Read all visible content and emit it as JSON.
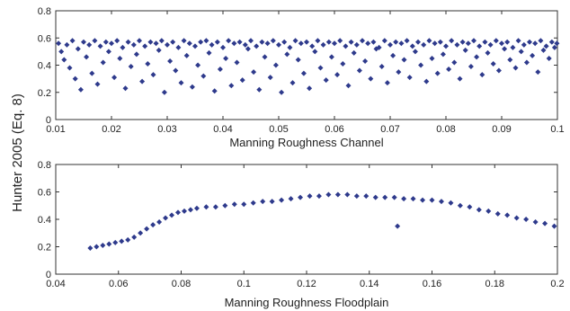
{
  "figure": {
    "shared_ylabel": "Hunter 2005 (Eq. 8)",
    "marker_color": "#2e3a8c"
  },
  "chart_data": [
    {
      "type": "scatter",
      "xlabel": "Manning Roughness Channel",
      "ylabel": "",
      "xlim": [
        0.01,
        0.1
      ],
      "ylim": [
        0,
        0.8
      ],
      "xticks": [
        "0.01",
        "0.02",
        "0.03",
        "0.04",
        "0.05",
        "0.06",
        "0.07",
        "0.08",
        "0.09",
        "0.1"
      ],
      "yticks": [
        "0",
        "0.2",
        "0.4",
        "0.6",
        "0.8"
      ],
      "grid": false,
      "points": [
        [
          0.0105,
          0.56
        ],
        [
          0.011,
          0.5
        ],
        [
          0.0115,
          0.44
        ],
        [
          0.012,
          0.55
        ],
        [
          0.0125,
          0.38
        ],
        [
          0.013,
          0.58
        ],
        [
          0.0135,
          0.3
        ],
        [
          0.014,
          0.52
        ],
        [
          0.0145,
          0.22
        ],
        [
          0.015,
          0.57
        ],
        [
          0.0155,
          0.46
        ],
        [
          0.016,
          0.55
        ],
        [
          0.0165,
          0.34
        ],
        [
          0.017,
          0.58
        ],
        [
          0.0175,
          0.26
        ],
        [
          0.018,
          0.54
        ],
        [
          0.0185,
          0.42
        ],
        [
          0.019,
          0.57
        ],
        [
          0.0195,
          0.5
        ],
        [
          0.02,
          0.56
        ],
        [
          0.0205,
          0.31
        ],
        [
          0.021,
          0.58
        ],
        [
          0.0215,
          0.45
        ],
        [
          0.022,
          0.53
        ],
        [
          0.0225,
          0.23
        ],
        [
          0.023,
          0.57
        ],
        [
          0.0235,
          0.39
        ],
        [
          0.024,
          0.55
        ],
        [
          0.0245,
          0.48
        ],
        [
          0.025,
          0.58
        ],
        [
          0.0255,
          0.28
        ],
        [
          0.026,
          0.54
        ],
        [
          0.0265,
          0.41
        ],
        [
          0.027,
          0.57
        ],
        [
          0.0275,
          0.33
        ],
        [
          0.028,
          0.56
        ],
        [
          0.0285,
          0.51
        ],
        [
          0.029,
          0.58
        ],
        [
          0.0295,
          0.2
        ],
        [
          0.03,
          0.55
        ],
        [
          0.0305,
          0.43
        ],
        [
          0.031,
          0.57
        ],
        [
          0.0315,
          0.36
        ],
        [
          0.032,
          0.53
        ],
        [
          0.0325,
          0.27
        ],
        [
          0.033,
          0.58
        ],
        [
          0.0335,
          0.47
        ],
        [
          0.034,
          0.56
        ],
        [
          0.0345,
          0.24
        ],
        [
          0.035,
          0.54
        ],
        [
          0.0355,
          0.4
        ],
        [
          0.036,
          0.57
        ],
        [
          0.0365,
          0.32
        ],
        [
          0.037,
          0.58
        ],
        [
          0.0375,
          0.49
        ],
        [
          0.038,
          0.55
        ],
        [
          0.0385,
          0.21
        ],
        [
          0.039,
          0.57
        ],
        [
          0.0395,
          0.37
        ],
        [
          0.04,
          0.53
        ],
        [
          0.0405,
          0.45
        ],
        [
          0.041,
          0.58
        ],
        [
          0.0415,
          0.25
        ],
        [
          0.042,
          0.56
        ],
        [
          0.0425,
          0.42
        ],
        [
          0.043,
          0.57
        ],
        [
          0.0435,
          0.29
        ],
        [
          0.044,
          0.55
        ],
        [
          0.0445,
          0.52
        ],
        [
          0.045,
          0.58
        ],
        [
          0.0455,
          0.35
        ],
        [
          0.046,
          0.54
        ],
        [
          0.0465,
          0.22
        ],
        [
          0.047,
          0.57
        ],
        [
          0.0475,
          0.46
        ],
        [
          0.048,
          0.56
        ],
        [
          0.0485,
          0.31
        ],
        [
          0.049,
          0.58
        ],
        [
          0.0495,
          0.4
        ],
        [
          0.05,
          0.55
        ],
        [
          0.0505,
          0.2
        ],
        [
          0.051,
          0.57
        ],
        [
          0.0515,
          0.48
        ],
        [
          0.052,
          0.53
        ],
        [
          0.0525,
          0.27
        ],
        [
          0.053,
          0.58
        ],
        [
          0.0535,
          0.44
        ],
        [
          0.054,
          0.56
        ],
        [
          0.0545,
          0.34
        ],
        [
          0.055,
          0.57
        ],
        [
          0.0555,
          0.23
        ],
        [
          0.056,
          0.54
        ],
        [
          0.0565,
          0.5
        ],
        [
          0.057,
          0.58
        ],
        [
          0.0575,
          0.38
        ],
        [
          0.058,
          0.55
        ],
        [
          0.0585,
          0.29
        ],
        [
          0.059,
          0.57
        ],
        [
          0.0595,
          0.46
        ],
        [
          0.06,
          0.56
        ],
        [
          0.0605,
          0.33
        ],
        [
          0.061,
          0.58
        ],
        [
          0.0615,
          0.41
        ],
        [
          0.062,
          0.54
        ],
        [
          0.0625,
          0.25
        ],
        [
          0.063,
          0.57
        ],
        [
          0.0635,
          0.49
        ],
        [
          0.064,
          0.55
        ],
        [
          0.0645,
          0.36
        ],
        [
          0.065,
          0.58
        ],
        [
          0.0655,
          0.43
        ],
        [
          0.066,
          0.56
        ],
        [
          0.0665,
          0.3
        ],
        [
          0.067,
          0.57
        ],
        [
          0.0675,
          0.52
        ],
        [
          0.068,
          0.53
        ],
        [
          0.0685,
          0.39
        ],
        [
          0.069,
          0.58
        ],
        [
          0.0695,
          0.27
        ],
        [
          0.07,
          0.55
        ],
        [
          0.0705,
          0.47
        ],
        [
          0.071,
          0.57
        ],
        [
          0.0715,
          0.35
        ],
        [
          0.072,
          0.56
        ],
        [
          0.0725,
          0.44
        ],
        [
          0.073,
          0.58
        ],
        [
          0.0735,
          0.31
        ],
        [
          0.074,
          0.54
        ],
        [
          0.0745,
          0.5
        ],
        [
          0.075,
          0.57
        ],
        [
          0.0755,
          0.4
        ],
        [
          0.076,
          0.55
        ],
        [
          0.0765,
          0.28
        ],
        [
          0.077,
          0.58
        ],
        [
          0.0775,
          0.45
        ],
        [
          0.078,
          0.56
        ],
        [
          0.0785,
          0.34
        ],
        [
          0.079,
          0.57
        ],
        [
          0.0795,
          0.48
        ],
        [
          0.08,
          0.54
        ],
        [
          0.0805,
          0.37
        ],
        [
          0.081,
          0.58
        ],
        [
          0.0815,
          0.42
        ],
        [
          0.082,
          0.55
        ],
        [
          0.0825,
          0.3
        ],
        [
          0.083,
          0.57
        ],
        [
          0.0835,
          0.51
        ],
        [
          0.084,
          0.56
        ],
        [
          0.0845,
          0.39
        ],
        [
          0.085,
          0.58
        ],
        [
          0.0855,
          0.46
        ],
        [
          0.086,
          0.54
        ],
        [
          0.0865,
          0.33
        ],
        [
          0.087,
          0.57
        ],
        [
          0.0875,
          0.49
        ],
        [
          0.088,
          0.55
        ],
        [
          0.0885,
          0.41
        ],
        [
          0.089,
          0.58
        ],
        [
          0.0895,
          0.36
        ],
        [
          0.09,
          0.56
        ],
        [
          0.0905,
          0.52
        ],
        [
          0.091,
          0.57
        ],
        [
          0.0915,
          0.44
        ],
        [
          0.092,
          0.53
        ],
        [
          0.0925,
          0.38
        ],
        [
          0.093,
          0.58
        ],
        [
          0.0935,
          0.5
        ],
        [
          0.094,
          0.55
        ],
        [
          0.0945,
          0.42
        ],
        [
          0.095,
          0.57
        ],
        [
          0.0955,
          0.47
        ],
        [
          0.096,
          0.56
        ],
        [
          0.0965,
          0.35
        ],
        [
          0.097,
          0.58
        ],
        [
          0.0975,
          0.51
        ],
        [
          0.098,
          0.54
        ],
        [
          0.0985,
          0.45
        ],
        [
          0.099,
          0.57
        ],
        [
          0.0995,
          0.53
        ],
        [
          0.0999,
          0.56
        ]
      ]
    },
    {
      "type": "scatter",
      "xlabel": "Manning Roughness Floodplain",
      "ylabel": "",
      "xlim": [
        0.04,
        0.2
      ],
      "ylim": [
        0,
        0.8
      ],
      "xticks": [
        "0.04",
        "0.06",
        "0.08",
        "0.1",
        "0.12",
        "0.14",
        "0.16",
        "0.18",
        "0.2"
      ],
      "yticks": [
        "0",
        "0.2",
        "0.4",
        "0.6",
        "0.8"
      ],
      "grid": false,
      "points": [
        [
          0.051,
          0.19
        ],
        [
          0.053,
          0.2
        ],
        [
          0.055,
          0.21
        ],
        [
          0.057,
          0.22
        ],
        [
          0.059,
          0.23
        ],
        [
          0.061,
          0.24
        ],
        [
          0.063,
          0.25
        ],
        [
          0.065,
          0.27
        ],
        [
          0.067,
          0.3
        ],
        [
          0.069,
          0.33
        ],
        [
          0.071,
          0.36
        ],
        [
          0.073,
          0.38
        ],
        [
          0.075,
          0.41
        ],
        [
          0.077,
          0.43
        ],
        [
          0.079,
          0.45
        ],
        [
          0.081,
          0.46
        ],
        [
          0.083,
          0.47
        ],
        [
          0.085,
          0.48
        ],
        [
          0.088,
          0.49
        ],
        [
          0.091,
          0.49
        ],
        [
          0.094,
          0.5
        ],
        [
          0.097,
          0.51
        ],
        [
          0.1,
          0.51
        ],
        [
          0.103,
          0.52
        ],
        [
          0.106,
          0.53
        ],
        [
          0.109,
          0.53
        ],
        [
          0.112,
          0.54
        ],
        [
          0.115,
          0.55
        ],
        [
          0.118,
          0.56
        ],
        [
          0.121,
          0.57
        ],
        [
          0.124,
          0.57
        ],
        [
          0.127,
          0.58
        ],
        [
          0.13,
          0.58
        ],
        [
          0.133,
          0.58
        ],
        [
          0.136,
          0.57
        ],
        [
          0.139,
          0.57
        ],
        [
          0.142,
          0.56
        ],
        [
          0.145,
          0.56
        ],
        [
          0.148,
          0.56
        ],
        [
          0.151,
          0.55
        ],
        [
          0.154,
          0.55
        ],
        [
          0.157,
          0.54
        ],
        [
          0.16,
          0.54
        ],
        [
          0.163,
          0.53
        ],
        [
          0.166,
          0.52
        ],
        [
          0.169,
          0.5
        ],
        [
          0.172,
          0.49
        ],
        [
          0.175,
          0.47
        ],
        [
          0.178,
          0.46
        ],
        [
          0.181,
          0.44
        ],
        [
          0.184,
          0.43
        ],
        [
          0.187,
          0.41
        ],
        [
          0.19,
          0.4
        ],
        [
          0.193,
          0.38
        ],
        [
          0.196,
          0.37
        ],
        [
          0.199,
          0.35
        ],
        [
          0.149,
          0.35
        ]
      ]
    }
  ]
}
